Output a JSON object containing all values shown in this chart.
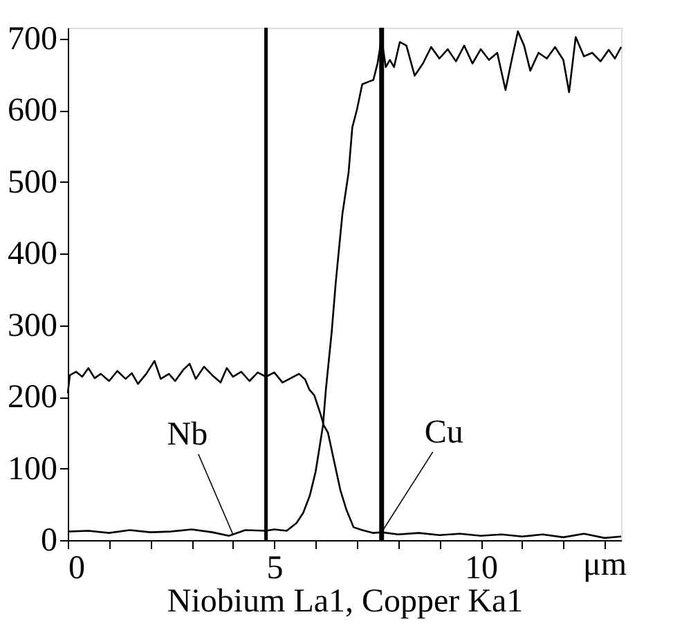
{
  "chart_data": {
    "type": "line",
    "xlabel": "Niobium La1, Copper Ka1",
    "series": [
      {
        "color": "#000000",
        "x": [
          0,
          0.05,
          0.2,
          0.35,
          0.5,
          0.65,
          0.8,
          1.0,
          1.2,
          1.4,
          1.55,
          1.7,
          1.9,
          2.1,
          2.25,
          2.45,
          2.6,
          2.8,
          2.95,
          3.1,
          3.3,
          3.5,
          3.7,
          3.85,
          4.0,
          4.2,
          4.4,
          4.6,
          4.8,
          5.0,
          5.2,
          5.4,
          5.6,
          5.75,
          5.85,
          5.97,
          6.12,
          6.2,
          6.3,
          6.45,
          6.6,
          6.75,
          6.92,
          7.13,
          7.4,
          7.6,
          8.0,
          8.5,
          9.0,
          9.5,
          10.0,
          10.5,
          11.0,
          11.5,
          12.0,
          12.5,
          13.0,
          13.4
        ],
        "values": [
          205,
          230,
          235,
          228,
          240,
          226,
          232,
          222,
          236,
          225,
          233,
          218,
          232,
          250,
          225,
          232,
          222,
          238,
          246,
          225,
          242,
          230,
          220,
          240,
          228,
          235,
          222,
          234,
          228,
          234,
          220,
          226,
          232,
          224,
          210,
          202,
          176,
          160,
          150,
          110,
          70,
          42,
          18,
          14,
          10,
          11,
          8,
          10,
          7,
          9,
          6,
          8,
          5,
          8,
          4,
          9,
          3,
          5
        ]
      },
      {
        "color": "#000000",
        "x": [
          0,
          0.5,
          1.0,
          1.5,
          2.0,
          2.5,
          3.0,
          3.5,
          3.9,
          4.0,
          4.3,
          4.8,
          5.0,
          5.3,
          5.54,
          5.7,
          5.86,
          6.0,
          6.07,
          6.18,
          6.25,
          6.39,
          6.49,
          6.65,
          6.8,
          6.89,
          7.0,
          7.13,
          7.3,
          7.4,
          7.5,
          7.6,
          7.7,
          7.8,
          7.9,
          8.04,
          8.2,
          8.4,
          8.6,
          8.8,
          9.0,
          9.2,
          9.4,
          9.6,
          9.8,
          10.0,
          10.2,
          10.4,
          10.6,
          10.75,
          10.9,
          11.05,
          11.2,
          11.4,
          11.6,
          11.8,
          12.0,
          12.14,
          12.3,
          12.5,
          12.7,
          12.9,
          13.1,
          13.25,
          13.4
        ],
        "values": [
          12,
          13,
          10,
          14,
          11,
          12,
          15,
          11,
          6,
          8,
          14,
          13,
          15,
          13,
          24,
          38,
          62,
          95,
          120,
          160,
          210,
          290,
          360,
          455,
          513,
          576,
          600,
          636,
          640,
          642,
          665,
          700,
          660,
          670,
          660,
          695,
          690,
          648,
          665,
          688,
          672,
          685,
          668,
          690,
          665,
          685,
          670,
          680,
          628,
          670,
          710,
          690,
          655,
          680,
          672,
          688,
          670,
          625,
          702,
          675,
          680,
          668,
          684,
          672,
          688
        ]
      }
    ],
    "xlim": [
      0,
      13.4
    ],
    "ylim": [
      0,
      715
    ],
    "xticks": [
      0,
      {
        "value": 1,
        "label": null
      },
      {
        "value": 2,
        "label": null
      },
      {
        "value": 3,
        "label": null
      },
      {
        "value": 4,
        "label": null
      },
      5,
      {
        "value": 6,
        "label": null
      },
      {
        "value": 7,
        "label": null
      },
      {
        "value": 8,
        "label": null
      },
      {
        "value": 9,
        "label": null
      },
      10,
      {
        "value": 11,
        "label": null
      },
      {
        "value": 12,
        "label": null
      },
      {
        "value": 13,
        "label": null
      }
    ],
    "yticks": [
      0,
      100,
      200,
      300,
      400,
      500,
      600,
      700
    ],
    "ref_lines": [
      {
        "axis": "x",
        "value": 4.8,
        "color": "#000000"
      },
      {
        "axis": "x",
        "value": 7.6,
        "color": "#000000"
      }
    ],
    "annotations": [
      {
        "text": "Nb",
        "x": 4.0,
        "y": 8
      },
      {
        "text": "Cu",
        "x": 7.6,
        "y": 11
      },
      "μm"
    ],
    "grid": false,
    "legend": false,
    "marker": "none",
    "line_style": "solid"
  }
}
